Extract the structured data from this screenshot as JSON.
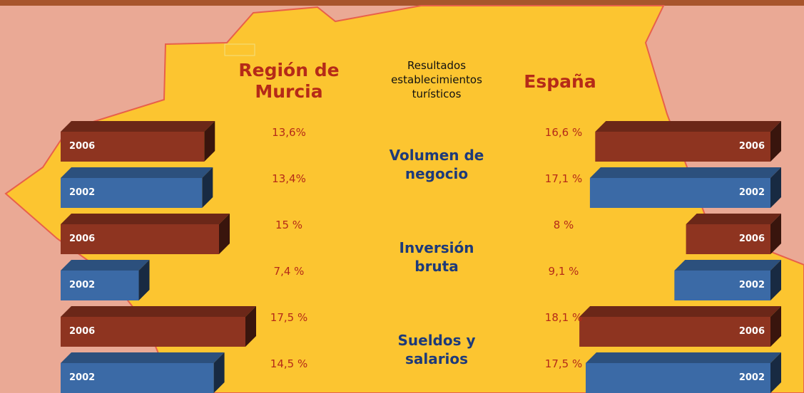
{
  "chart_data": {
    "type": "bar",
    "title": "Resultados establecimientos turísticos",
    "categories": [
      "Volumen de negocio",
      "Inversión bruta",
      "Sueldos y salarios"
    ],
    "regions": [
      {
        "name": "Región de Murcia",
        "side": "left",
        "series": [
          {
            "name": "2006",
            "color": "#8e3420",
            "values": [
              13.6,
              15,
              17.5
            ],
            "value_labels": [
              "13,6%",
              "15 %",
              "17,5 %"
            ]
          },
          {
            "name": "2002",
            "color": "#3b6aa6",
            "values": [
              13.4,
              7.4,
              14.5
            ],
            "value_labels": [
              "13,4%",
              "7,4 %",
              "14,5 %"
            ]
          }
        ]
      },
      {
        "name": "España",
        "side": "right",
        "series": [
          {
            "name": "2006",
            "color": "#8e3420",
            "values": [
              16.6,
              8,
              18.1
            ],
            "value_labels": [
              "16,6 %",
              "8 %",
              "18,1 %"
            ]
          },
          {
            "name": "2002",
            "color": "#3b6aa6",
            "values": [
              17.1,
              9.1,
              17.5
            ],
            "value_labels": [
              "17,1 %",
              "9,1 %",
              "17,5 %"
            ]
          }
        ]
      }
    ]
  }
}
